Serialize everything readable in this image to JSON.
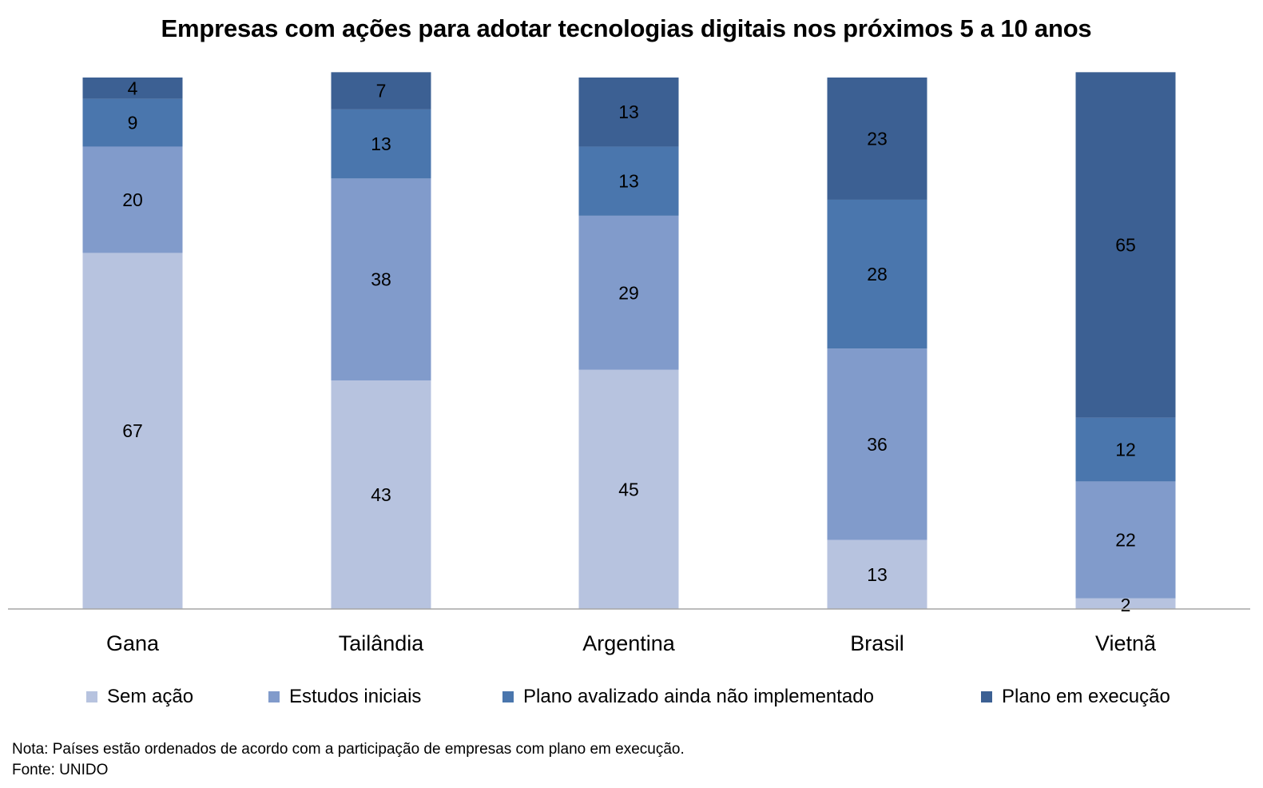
{
  "chart_data": {
    "type": "bar",
    "stacked": true,
    "title": "Empresas com ações para adotar tecnologias digitais nos próximos 5 a 10 anos",
    "categories": [
      "Gana",
      "Tailândia",
      "Argentina",
      "Brasil",
      "Vietnã"
    ],
    "series": [
      {
        "name": "Sem ação",
        "color": "#b7c3df",
        "values": [
          67,
          43,
          45,
          13,
          2
        ]
      },
      {
        "name": "Estudos iniciais",
        "color": "#819bcb",
        "values": [
          20,
          38,
          29,
          36,
          22
        ]
      },
      {
        "name": "Plano avalizado ainda não implementado",
        "color": "#4a76ad",
        "values": [
          9,
          13,
          13,
          28,
          12
        ]
      },
      {
        "name": "Plano em execução",
        "color": "#3c6093",
        "values": [
          4,
          7,
          13,
          23,
          65
        ]
      }
    ],
    "ylim": [
      0,
      100
    ],
    "legend_position": "bottom",
    "grid": false,
    "note": "Nota: Países estão ordenados de acordo com a participação de empresas com plano em execução.",
    "source": "Fonte: UNIDO"
  }
}
